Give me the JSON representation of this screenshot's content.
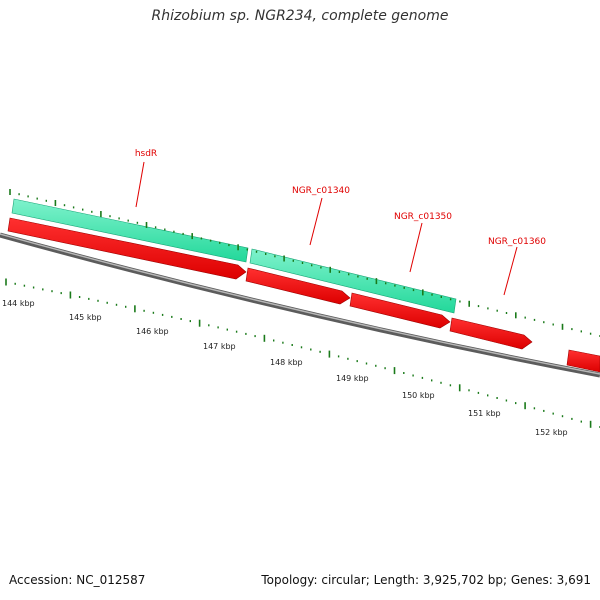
{
  "title": "Rhizobium sp. NGR234, complete genome",
  "footer": {
    "accession": "Accession: NC_012587",
    "stats": "Topology: circular; Length: 3,925,702 bp; Genes: 3,691"
  },
  "colors": {
    "cds": "#ff0000",
    "gene": "#33e6a6",
    "backbone": "#808080",
    "tick": "#1a7a1a",
    "label": "#e00000"
  },
  "genome_map": {
    "region_start_kbp": 144,
    "region_end_kbp": 152,
    "scale_labels": [
      "144 kbp",
      "145 kbp",
      "146 kbp",
      "147 kbp",
      "148 kbp",
      "149 kbp",
      "150 kbp",
      "151 kbp",
      "152 kbp"
    ],
    "gene_labels": [
      "hsdR",
      "NGR_c01340",
      "NGR_c01350",
      "NGR_c01360"
    ]
  }
}
